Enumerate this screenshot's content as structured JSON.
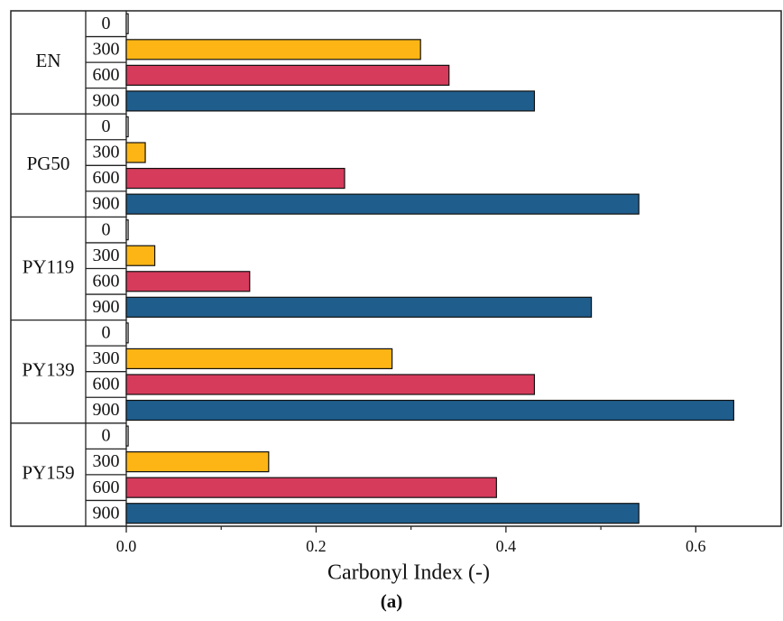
{
  "chart_data": {
    "type": "bar",
    "orientation": "horizontal",
    "xlabel": "Carbonyl Index (-)",
    "caption": "(a)",
    "categories": [
      "EN",
      "PG50",
      "PY119",
      "PY139",
      "PY159"
    ],
    "series": [
      {
        "name": "0",
        "color": "#ffffff",
        "values": [
          0.002,
          0.002,
          0.002,
          0.002,
          0.002
        ]
      },
      {
        "name": "300",
        "color": "#fdb515",
        "values": [
          0.31,
          0.02,
          0.03,
          0.28,
          0.15
        ]
      },
      {
        "name": "600",
        "color": "#d63b5c",
        "values": [
          0.34,
          0.23,
          0.13,
          0.43,
          0.39
        ]
      },
      {
        "name": "900",
        "color": "#1f5d8c",
        "values": [
          0.43,
          0.54,
          0.49,
          0.64,
          0.54
        ]
      }
    ],
    "xlim": [
      0,
      0.69
    ],
    "xticks": [
      {
        "value": 0,
        "label": "0.0"
      },
      0.2,
      0.4,
      0.6
    ],
    "xminorticks": [
      0.1,
      0.3,
      0.5
    ]
  }
}
